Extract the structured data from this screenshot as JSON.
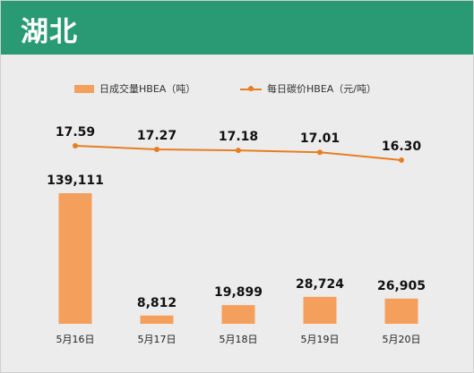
{
  "header": {
    "title": "湖北"
  },
  "colors": {
    "header_bg": "#2a9a74",
    "bar": "#f4a05c",
    "line": "#e67e22",
    "panel_bg": "#ececec"
  },
  "chart_data": {
    "type": "bar+line",
    "categories": [
      "5月16日",
      "5月17日",
      "5月18日",
      "5月19日",
      "5月20日"
    ],
    "series": [
      {
        "name": "日成交量HBEA（吨）",
        "type": "bar",
        "values": [
          139111,
          8812,
          19899,
          28724,
          26905
        ],
        "labels": [
          "139,111",
          "8,812",
          "19,899",
          "28,724",
          "26,905"
        ]
      },
      {
        "name": "每日碳价HBEA（元/吨）",
        "type": "line",
        "values": [
          17.59,
          17.27,
          17.18,
          17.01,
          16.3
        ],
        "labels": [
          "17.59",
          "17.27",
          "17.18",
          "17.01",
          "16.30"
        ]
      }
    ],
    "legend_position": "top",
    "grid": false
  }
}
